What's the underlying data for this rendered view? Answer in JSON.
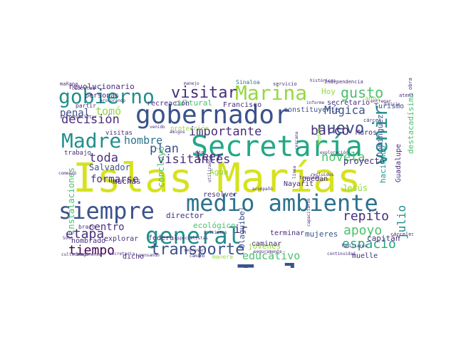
{
  "palette": {
    "yellow": "#d6e21f",
    "lime": "#95d840",
    "green": "#4ac16d",
    "teal": "#22a884",
    "cyan": "#21908d",
    "blue": "#2c728e",
    "navy": "#3b528b",
    "indigo": "#472d7b",
    "purple": "#440154"
  },
  "words": [
    {
      "t": "Islas Marías",
      "c": "yellow"
    },
    {
      "t": "Isla",
      "c": "navy"
    },
    {
      "t": "Secretaría",
      "c": "teal"
    },
    {
      "t": "gobernador",
      "c": "navy"
    },
    {
      "t": "medio ambiente",
      "c": "blue"
    },
    {
      "t": "siempre",
      "c": "navy"
    },
    {
      "t": "general",
      "c": "cyan"
    },
    {
      "t": "Marina",
      "c": "lime"
    },
    {
      "t": "gobierno",
      "c": "cyan"
    },
    {
      "t": "transporte",
      "c": "navy"
    },
    {
      "t": "visitar",
      "c": "indigo"
    },
    {
      "t": "Madre",
      "c": "cyan"
    },
    {
      "t": "nuevo",
      "c": "navy"
    },
    {
      "t": "venir",
      "c": "cyan"
    },
    {
      "t": "gusto",
      "c": "green"
    },
    {
      "t": "etapa",
      "c": "indigo"
    },
    {
      "t": "espacio",
      "c": "teal"
    },
    {
      "t": "tiempo",
      "c": "purple"
    },
    {
      "t": "apoyo",
      "c": "green"
    },
    {
      "t": "decisión",
      "c": "indigo"
    },
    {
      "t": "visitantes",
      "c": "indigo"
    },
    {
      "t": "plan",
      "c": "navy"
    },
    {
      "t": "importante",
      "c": "indigo"
    },
    {
      "t": "barco",
      "c": "indigo"
    },
    {
      "t": "novela",
      "c": "green"
    },
    {
      "t": "toda",
      "c": "indigo"
    },
    {
      "t": "hombre",
      "c": "blue"
    },
    {
      "t": "repito",
      "c": "indigo"
    },
    {
      "t": "julio",
      "c": "cyan"
    },
    {
      "t": "Múgica",
      "c": "navy"
    },
    {
      "t": "tomó",
      "c": "lime"
    },
    {
      "t": "leer",
      "c": "indigo"
    },
    {
      "t": "educativo",
      "c": "green"
    },
    {
      "t": "ir",
      "c": "indigo"
    },
    {
      "t": "centro",
      "c": "indigo"
    },
    {
      "t": "formarse",
      "c": "indigo"
    },
    {
      "t": "Salvador",
      "c": "navy"
    },
    {
      "t": "proyecto",
      "c": "indigo"
    },
    {
      "t": "jóvenes",
      "c": "lime"
    },
    {
      "t": "capitán",
      "c": "indigo"
    },
    {
      "t": "penal",
      "c": "navy"
    },
    {
      "t": "mujeres",
      "c": "navy"
    },
    {
      "t": "ecológico",
      "c": "green"
    },
    {
      "t": "Olaguibel",
      "c": "navy"
    },
    {
      "t": "concluyó",
      "c": "green"
    },
    {
      "t": "instalaciones",
      "c": "green"
    },
    {
      "t": "Agua",
      "c": "lime"
    },
    {
      "t": "Muros",
      "c": "indigo"
    },
    {
      "t": "Domínguez",
      "c": "navy"
    },
    {
      "t": "secretario",
      "c": "indigo"
    },
    {
      "t": "constituyente",
      "c": "navy"
    },
    {
      "t": "Turismo",
      "c": "navy"
    },
    {
      "t": "cultural",
      "c": "green"
    },
    {
      "t": "Francisco",
      "c": "indigo"
    },
    {
      "t": "recreación",
      "c": "indigo"
    },
    {
      "t": "revolucionario",
      "c": "indigo"
    },
    {
      "t": "Sinaloa",
      "c": "blue"
    },
    {
      "t": "servicio",
      "c": "indigo"
    },
    {
      "t": "Independencia",
      "c": "indigo"
    },
    {
      "t": "obra",
      "c": "indigo"
    },
    {
      "t": "atento",
      "c": "indigo"
    },
    {
      "t": "mañana",
      "c": "indigo"
    },
    {
      "t": "Hoy",
      "c": "lime"
    },
    {
      "t": "años",
      "c": "lime"
    },
    {
      "t": "destacadísimo",
      "c": "green"
    },
    {
      "t": "director",
      "c": "indigo"
    },
    {
      "t": "federal",
      "c": "indigo"
    },
    {
      "t": "explorar",
      "c": "indigo"
    },
    {
      "t": "nombrado",
      "c": "indigo"
    },
    {
      "t": "muchas",
      "c": "indigo"
    },
    {
      "t": "dicho",
      "c": "indigo"
    },
    {
      "t": "resolver",
      "c": "indigo"
    },
    {
      "t": "caminar",
      "c": "indigo"
    },
    {
      "t": "puedan",
      "c": "indigo"
    },
    {
      "t": "terminar",
      "c": "indigo"
    },
    {
      "t": "regresar",
      "c": "indigo"
    },
    {
      "t": "muelle",
      "c": "indigo"
    },
    {
      "t": "Guadalupe",
      "c": "indigo"
    },
    {
      "t": "haciendo",
      "c": "cyan"
    },
    {
      "t": "Jesús",
      "c": "lime"
    },
    {
      "t": "Nayarit",
      "c": "indigo"
    },
    {
      "t": "trabajo",
      "c": "indigo"
    },
    {
      "t": "protección",
      "c": "lime"
    },
    {
      "t": "visitas",
      "c": "indigo"
    },
    {
      "t": "brazo",
      "c": "indigo"
    },
    {
      "t": "dio",
      "c": "indigo"
    },
    {
      "t": "medio",
      "c": "lime"
    },
    {
      "t": "personas",
      "c": "indigo"
    },
    {
      "t": "libertad",
      "c": "indigo"
    },
    {
      "t": "cárcel",
      "c": "indigo"
    },
    {
      "t": "cárceles",
      "c": "indigo"
    },
    {
      "t": "partir",
      "c": "indigo"
    },
    {
      "t": "Solo",
      "c": "indigo"
    },
    {
      "t": "Imagínense",
      "c": "indigo"
    },
    {
      "t": "pensando",
      "c": "indigo"
    },
    {
      "t": "camino",
      "c": "indigo"
    },
    {
      "t": "secretaria",
      "c": "indigo"
    },
    {
      "t": "manera",
      "c": "lime"
    },
    {
      "t": "continuidad",
      "c": "indigo"
    },
    {
      "t": "seguramente",
      "c": "indigo"
    },
    {
      "t": "traslado",
      "c": "indigo"
    },
    {
      "t": "especialistas",
      "c": "indigo"
    },
    {
      "t": "históricos",
      "c": "indigo"
    },
    {
      "t": "familiares",
      "c": "indigo"
    },
    {
      "t": "manejo",
      "c": "indigo"
    },
    {
      "t": "procurando",
      "c": "indigo"
    },
    {
      "t": "iniciamos",
      "c": "indigo"
    },
    {
      "t": "comenzó",
      "c": "indigo"
    },
    {
      "t": "informe",
      "c": "indigo"
    },
    {
      "t": "entregar",
      "c": "indigo"
    },
    {
      "t": "inicio",
      "c": "indigo"
    },
    {
      "t": "recluidos",
      "c": "indigo"
    },
    {
      "t": "línea",
      "c": "indigo"
    },
    {
      "t": "capacitarse",
      "c": "indigo"
    },
    {
      "t": "culturales",
      "c": "indigo"
    },
    {
      "t": "cercana",
      "c": "indigo"
    },
    {
      "t": "rehabilitar",
      "c": "indigo"
    },
    {
      "t": "amigos",
      "c": "indigo"
    },
    {
      "t": "venido",
      "c": "indigo"
    },
    {
      "t": "utilizado",
      "c": "indigo"
    },
    {
      "t": "acompañó",
      "c": "indigo"
    },
    {
      "t": "exploración",
      "c": "indigo"
    },
    {
      "t": "primero",
      "c": "lime"
    }
  ]
}
